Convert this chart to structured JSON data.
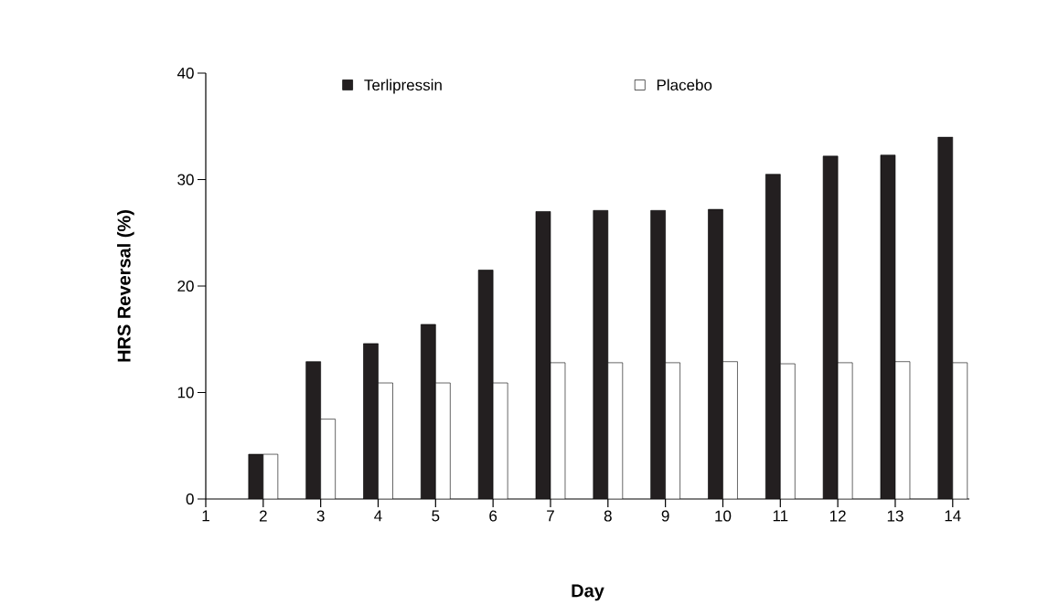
{
  "chart_data": {
    "type": "bar",
    "xlabel": "Day",
    "ylabel": "HRS Reversal (%)",
    "categories": [
      "1",
      "2",
      "3",
      "4",
      "5",
      "6",
      "7",
      "8",
      "9",
      "10",
      "11",
      "12",
      "13",
      "14"
    ],
    "series": [
      {
        "name": "Terlipressin",
        "color": "#231f20",
        "values": [
          null,
          4.2,
          12.9,
          14.6,
          16.4,
          21.5,
          27.0,
          27.1,
          27.1,
          27.2,
          30.5,
          32.2,
          32.3,
          34.0
        ]
      },
      {
        "name": "Placebo",
        "color": "#ffffff",
        "values": [
          null,
          4.2,
          7.5,
          10.9,
          10.9,
          10.9,
          12.8,
          12.8,
          12.8,
          12.9,
          12.7,
          12.8,
          12.9,
          12.8
        ]
      }
    ],
    "ylim": [
      0,
      40
    ],
    "yticks": [
      0,
      10,
      20,
      30,
      40
    ],
    "grid": false,
    "legend": "top"
  }
}
